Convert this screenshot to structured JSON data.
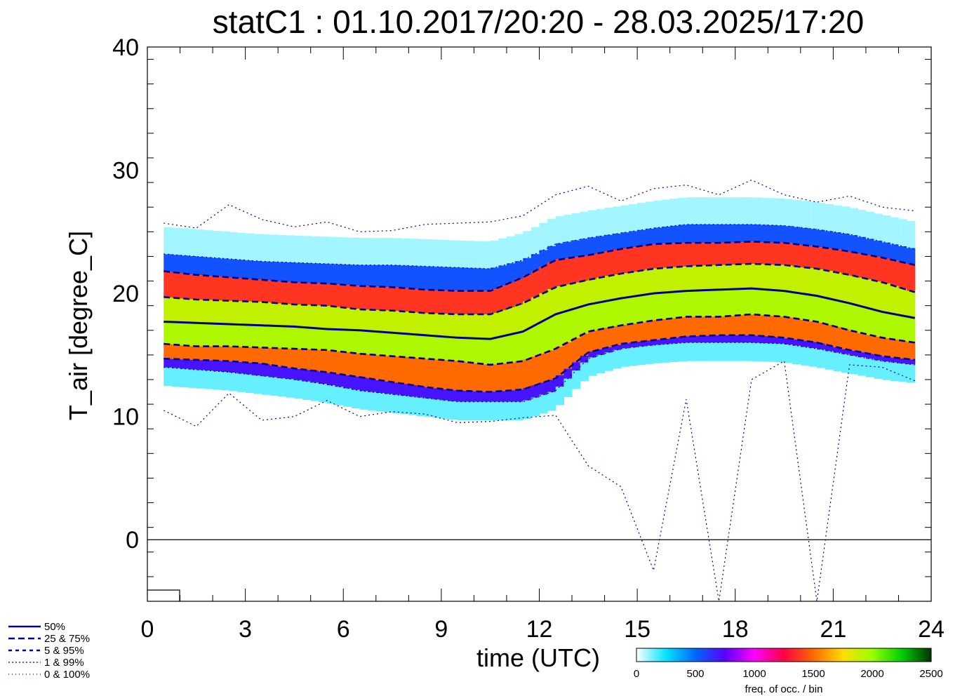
{
  "chart_data": {
    "type": "heatmap",
    "title": "statC1 : 01.10.2017/20:20 - 28.03.2025/17:20",
    "xlabel": "time (UTC)",
    "ylabel": "T_air [degree_C]",
    "xlim": [
      0,
      24
    ],
    "ylim": [
      -5,
      40
    ],
    "x_ticks": [
      0,
      3,
      6,
      9,
      12,
      15,
      18,
      21,
      24
    ],
    "y_ticks": [
      0,
      10,
      20,
      30,
      40
    ],
    "x_ticks_labels": [
      "0",
      "3",
      "6",
      "9",
      "12",
      "15",
      "18",
      "21",
      "24"
    ],
    "y_ticks_labels": [
      "0",
      "10",
      "20",
      "30",
      "40"
    ],
    "zero_line": 0,
    "x": [
      0.5,
      1.5,
      2.5,
      3.5,
      4.5,
      5.5,
      6.5,
      7.5,
      8.5,
      9.5,
      10.5,
      11.5,
      12.5,
      13.5,
      14.5,
      15.5,
      16.5,
      17.5,
      18.5,
      19.5,
      20.5,
      21.5,
      22.5,
      23.5
    ],
    "series": [
      {
        "name": "max",
        "group": "0 & 100%",
        "style": "dotted",
        "values": [
          25.7,
          25.3,
          27.2,
          26.0,
          25.4,
          25.8,
          25.0,
          25.1,
          25.6,
          25.7,
          25.8,
          26.3,
          28.0,
          28.7,
          27.5,
          28.5,
          28.8,
          28.0,
          29.2,
          28.0,
          27.4,
          27.9,
          27.0,
          26.7
        ]
      },
      {
        "name": "p99",
        "group": "1 & 99%",
        "style": "dotted",
        "values": [
          23.2,
          23.0,
          22.8,
          22.6,
          22.5,
          22.4,
          22.3,
          22.3,
          22.2,
          22.1,
          22.0,
          22.7,
          24.0,
          24.5,
          24.9,
          25.3,
          25.6,
          25.6,
          25.6,
          25.5,
          25.2,
          24.8,
          24.2,
          23.6
        ]
      },
      {
        "name": "p95",
        "group": "5 & 95%",
        "style": "dashed",
        "values": [
          21.8,
          21.5,
          21.3,
          21.1,
          20.9,
          20.8,
          20.6,
          20.5,
          20.3,
          20.2,
          20.2,
          21.3,
          22.7,
          23.1,
          23.6,
          24.0,
          24.1,
          24.1,
          24.2,
          24.1,
          23.8,
          23.4,
          22.9,
          22.3
        ]
      },
      {
        "name": "p75",
        "group": "25 & 75%",
        "style": "dashed",
        "values": [
          19.7,
          19.5,
          19.4,
          19.3,
          19.1,
          19.0,
          18.7,
          18.6,
          18.4,
          18.3,
          18.3,
          19.2,
          20.5,
          21.1,
          21.6,
          22.0,
          22.2,
          22.3,
          22.4,
          22.3,
          22.0,
          21.5,
          20.9,
          20.1
        ]
      },
      {
        "name": "median",
        "group": "50%",
        "style": "solid",
        "values": [
          17.7,
          17.6,
          17.5,
          17.4,
          17.3,
          17.1,
          17.0,
          16.8,
          16.6,
          16.4,
          16.3,
          16.9,
          18.3,
          19.1,
          19.6,
          20.0,
          20.2,
          20.3,
          20.4,
          20.2,
          19.8,
          19.2,
          18.5,
          18.0
        ]
      },
      {
        "name": "p25",
        "group": "25 & 75%",
        "style": "dashed",
        "values": [
          15.9,
          15.7,
          15.7,
          15.6,
          15.5,
          15.4,
          15.1,
          14.9,
          14.7,
          14.5,
          14.2,
          14.5,
          15.5,
          16.9,
          17.4,
          17.8,
          18.1,
          18.1,
          18.3,
          18.1,
          17.7,
          17.0,
          16.4,
          16.0
        ]
      },
      {
        "name": "p5",
        "group": "5 & 95%",
        "style": "dashed",
        "values": [
          14.7,
          14.6,
          14.5,
          14.3,
          13.9,
          13.6,
          13.2,
          12.8,
          12.4,
          12.1,
          12.0,
          12.2,
          13.1,
          15.2,
          15.9,
          16.2,
          16.5,
          16.6,
          16.6,
          16.4,
          16.0,
          15.4,
          14.9,
          14.6
        ]
      },
      {
        "name": "p1",
        "group": "1 & 99%",
        "style": "dotted",
        "values": [
          14.0,
          13.8,
          13.6,
          13.3,
          13.0,
          12.6,
          12.1,
          11.8,
          11.5,
          11.2,
          11.2,
          11.2,
          12.1,
          14.7,
          15.5,
          15.8,
          16.0,
          16.0,
          16.0,
          15.9,
          15.5,
          15.0,
          14.5,
          14.2
        ]
      },
      {
        "name": "min",
        "group": "0 & 100%",
        "style": "dotted",
        "values": [
          10.5,
          9.2,
          11.9,
          9.7,
          10.0,
          11.3,
          10.0,
          10.4,
          10.2,
          9.5,
          9.6,
          9.9,
          10.1,
          6.0,
          4.3,
          -2.5,
          11.4,
          -5.0,
          13.0,
          14.5,
          -5.0,
          14.2,
          14.0,
          12.9
        ]
      }
    ],
    "legend": [
      "50%",
      "25 &  75%",
      "5 &  95%",
      "1 &  99%",
      "0 & 100%"
    ],
    "legend_placement": "bottom-left",
    "colorbar": {
      "label": "freq. of occ. / bin",
      "range": [
        0,
        2500
      ],
      "ticks": [
        "0",
        "500",
        "1000",
        "1500",
        "2000",
        "2500"
      ],
      "colors": [
        "#ffffff",
        "#00e5ff",
        "#0066ff",
        "#5a00ff",
        "#ff00ff",
        "#ff0044",
        "#ff6a00",
        "#ffdd00",
        "#99ff00",
        "#00d000",
        "#003300"
      ]
    },
    "line_color": "#00008b",
    "corner_box": "small open rectangle at lower-left of the plot"
  }
}
